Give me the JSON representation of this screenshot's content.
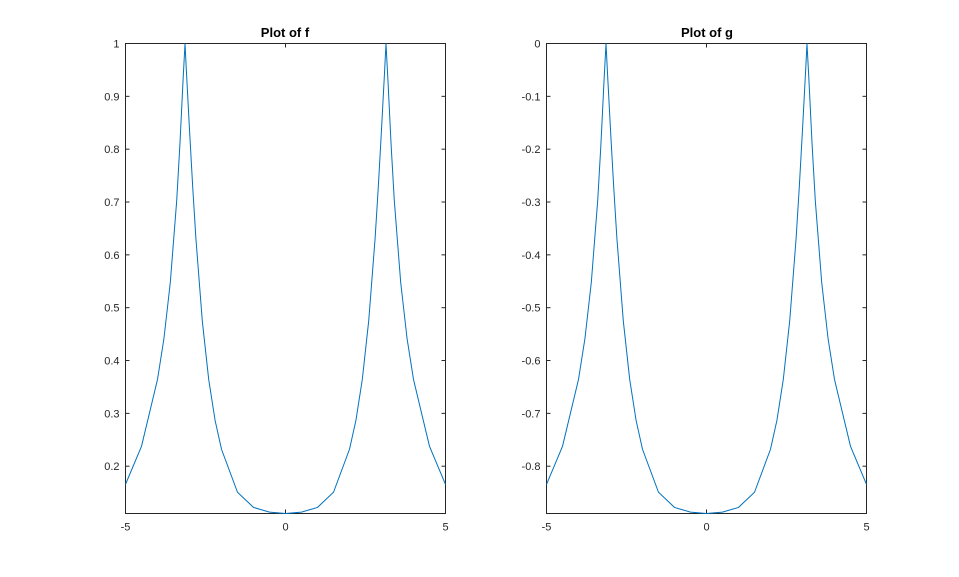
{
  "chart_data": [
    {
      "type": "line",
      "title": "Plot of f",
      "xlabel": "",
      "ylabel": "",
      "xlim": [
        -5,
        5
      ],
      "ylim": [
        0.1105,
        1
      ],
      "xticks": [
        -5,
        0,
        5
      ],
      "xtick_labels": [
        "-5",
        "0",
        "5"
      ],
      "yticks": [
        0.2,
        0.3,
        0.4,
        0.5,
        0.6,
        0.7,
        0.8,
        0.9,
        1
      ],
      "ytick_labels": [
        "0.2",
        "0.3",
        "0.4",
        "0.5",
        "0.6",
        "0.7",
        "0.8",
        "0.9",
        "1"
      ],
      "grid": false,
      "series": [
        {
          "color": "#0072BD",
          "x": [
            -5,
            -4.5,
            -4,
            -3.8,
            -3.6,
            -3.4,
            -3.3,
            -3.2,
            -3.14,
            -3.1,
            -3.0,
            -2.9,
            -2.8,
            -2.6,
            -2.4,
            -2.2,
            -2.0,
            -1.5,
            -1.0,
            -0.5,
            0,
            0.5,
            1.0,
            1.5,
            2.0,
            2.2,
            2.4,
            2.6,
            2.8,
            2.9,
            3.0,
            3.1,
            3.14,
            3.2,
            3.3,
            3.4,
            3.6,
            3.8,
            4.0,
            4.5,
            5
          ],
          "y": [
            0.1656,
            0.2377,
            0.3642,
            0.441,
            0.5477,
            0.7025,
            0.8085,
            0.9322,
            1.0,
            0.9512,
            0.8369,
            0.7285,
            0.6311,
            0.475,
            0.3642,
            0.2866,
            0.2321,
            0.1507,
            0.122,
            0.1132,
            0.1105,
            0.1132,
            0.122,
            0.1507,
            0.2321,
            0.2866,
            0.3642,
            0.475,
            0.6311,
            0.7285,
            0.8369,
            0.9512,
            1.0,
            0.9322,
            0.8085,
            0.7025,
            0.5477,
            0.441,
            0.3642,
            0.2377,
            0.1656
          ]
        }
      ]
    },
    {
      "type": "line",
      "title": "Plot of g",
      "xlabel": "",
      "ylabel": "",
      "xlim": [
        -5,
        5
      ],
      "ylim": [
        -0.8895,
        0
      ],
      "xticks": [
        -5,
        0,
        5
      ],
      "xtick_labels": [
        "-5",
        "0",
        "5"
      ],
      "yticks": [
        -0.8,
        -0.7,
        -0.6,
        -0.5,
        -0.4,
        -0.3,
        -0.2,
        -0.1,
        0
      ],
      "ytick_labels": [
        "-0.8",
        "-0.7",
        "-0.6",
        "-0.5",
        "-0.4",
        "-0.3",
        "-0.2",
        "-0.1",
        "0"
      ],
      "grid": false,
      "series": [
        {
          "color": "#0072BD",
          "x": [
            -5,
            -4.5,
            -4,
            -3.8,
            -3.6,
            -3.4,
            -3.3,
            -3.2,
            -3.14,
            -3.1,
            -3.0,
            -2.9,
            -2.8,
            -2.6,
            -2.4,
            -2.2,
            -2.0,
            -1.5,
            -1.0,
            -0.5,
            0,
            0.5,
            1.0,
            1.5,
            2.0,
            2.2,
            2.4,
            2.6,
            2.8,
            2.9,
            3.0,
            3.1,
            3.14,
            3.2,
            3.3,
            3.4,
            3.6,
            3.8,
            4.0,
            4.5,
            5
          ],
          "y": [
            -0.8344,
            -0.7623,
            -0.6358,
            -0.559,
            -0.4523,
            -0.2975,
            -0.1915,
            -0.0678,
            0.0,
            -0.0488,
            -0.1631,
            -0.2715,
            -0.3689,
            -0.525,
            -0.6358,
            -0.7134,
            -0.7679,
            -0.8493,
            -0.878,
            -0.8868,
            -0.8895,
            -0.8868,
            -0.878,
            -0.8493,
            -0.7679,
            -0.7134,
            -0.6358,
            -0.525,
            -0.3689,
            -0.2715,
            -0.1631,
            -0.0488,
            0.0,
            -0.0678,
            -0.1915,
            -0.2975,
            -0.4523,
            -0.559,
            -0.6358,
            -0.7623,
            -0.8344
          ]
        }
      ]
    }
  ]
}
